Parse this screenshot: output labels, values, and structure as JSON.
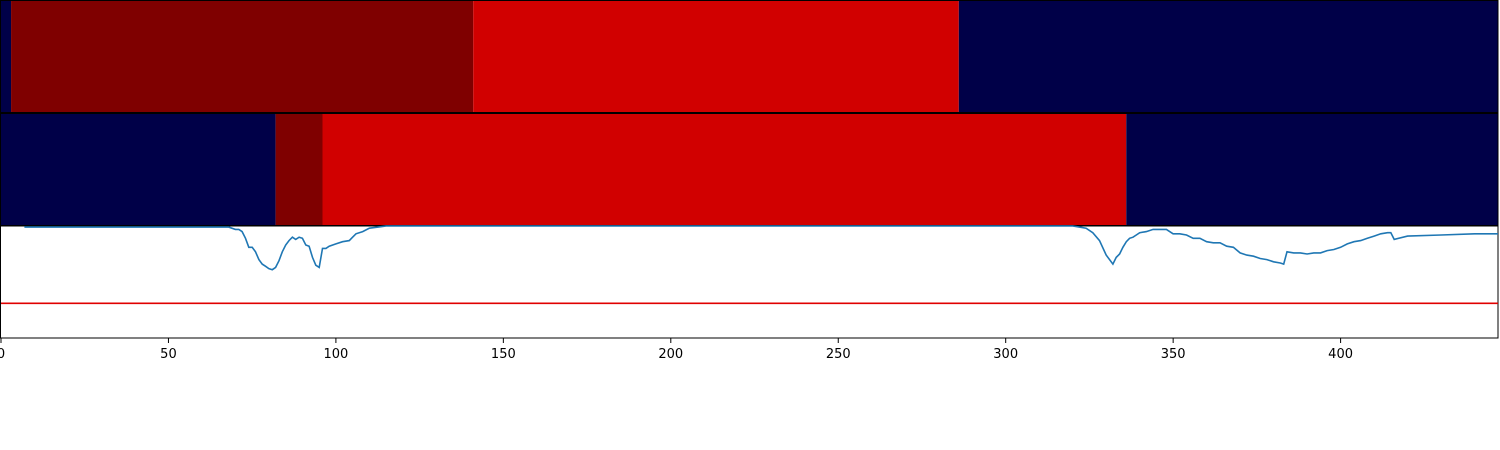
{
  "chart_data": {
    "type": "line",
    "xlim": [
      0,
      447
    ],
    "x_ticks": [
      0,
      50,
      100,
      150,
      200,
      250,
      300,
      350,
      400
    ],
    "x_tick_labels": [
      "0",
      "50",
      "100",
      "150",
      "200",
      "250",
      "300",
      "350",
      "400"
    ],
    "segment_tracks": [
      {
        "segments": [
          {
            "start": 0,
            "end": 3,
            "class": "c0"
          },
          {
            "start": 3,
            "end": 141,
            "class": "c1"
          },
          {
            "start": 141,
            "end": 286,
            "class": "c2"
          },
          {
            "start": 286,
            "end": 447,
            "class": "c0"
          }
        ]
      },
      {
        "segments": [
          {
            "start": 0,
            "end": 82,
            "class": "c0"
          },
          {
            "start": 82,
            "end": 96,
            "class": "c1"
          },
          {
            "start": 96,
            "end": 336,
            "class": "c2"
          },
          {
            "start": 336,
            "end": 447,
            "class": "c0"
          }
        ]
      }
    ],
    "segment_colors": {
      "c0": "#000048",
      "c1": "#7f0000",
      "c2": "#d10000"
    },
    "line_series": {
      "color": "#1f77b4",
      "ylim": [
        0,
        1
      ],
      "x": [
        7,
        20,
        40,
        60,
        68,
        70,
        71,
        72,
        73,
        74,
        75,
        76,
        77,
        78,
        79,
        80,
        81,
        82,
        83,
        84,
        85,
        86,
        87,
        88,
        89,
        90,
        91,
        92,
        93,
        94,
        95,
        96,
        97,
        98,
        100,
        102,
        104,
        105,
        106,
        108,
        110,
        115,
        120,
        320,
        322,
        324,
        326,
        328,
        330,
        332,
        333,
        334,
        335,
        336,
        337,
        338,
        339,
        340,
        342,
        344,
        346,
        348,
        350,
        352,
        354,
        356,
        358,
        360,
        362,
        364,
        366,
        368,
        370,
        372,
        374,
        376,
        378,
        380,
        382,
        383,
        384,
        386,
        388,
        390,
        392,
        394,
        396,
        398,
        400,
        402,
        404,
        406,
        408,
        410,
        412,
        414,
        415,
        416,
        420,
        430,
        440,
        447
      ],
      "y": [
        0.99,
        0.99,
        0.99,
        0.99,
        0.99,
        0.97,
        0.97,
        0.95,
        0.89,
        0.81,
        0.81,
        0.77,
        0.7,
        0.66,
        0.64,
        0.62,
        0.61,
        0.63,
        0.69,
        0.77,
        0.83,
        0.87,
        0.9,
        0.88,
        0.9,
        0.89,
        0.83,
        0.82,
        0.72,
        0.65,
        0.63,
        0.8,
        0.8,
        0.82,
        0.84,
        0.86,
        0.87,
        0.9,
        0.93,
        0.95,
        0.98,
        1.0,
        1.0,
        1.0,
        0.99,
        0.98,
        0.94,
        0.87,
        0.74,
        0.66,
        0.72,
        0.75,
        0.81,
        0.86,
        0.89,
        0.9,
        0.92,
        0.94,
        0.95,
        0.97,
        0.97,
        0.97,
        0.93,
        0.93,
        0.92,
        0.89,
        0.89,
        0.86,
        0.85,
        0.85,
        0.82,
        0.81,
        0.76,
        0.74,
        0.73,
        0.71,
        0.7,
        0.68,
        0.67,
        0.66,
        0.77,
        0.76,
        0.76,
        0.75,
        0.76,
        0.76,
        0.78,
        0.79,
        0.81,
        0.84,
        0.86,
        0.87,
        0.89,
        0.91,
        0.93,
        0.94,
        0.94,
        0.88,
        0.91,
        0.92,
        0.93,
        0.93
      ]
    },
    "threshold": {
      "y": 0.31,
      "color": "#e00000"
    }
  }
}
